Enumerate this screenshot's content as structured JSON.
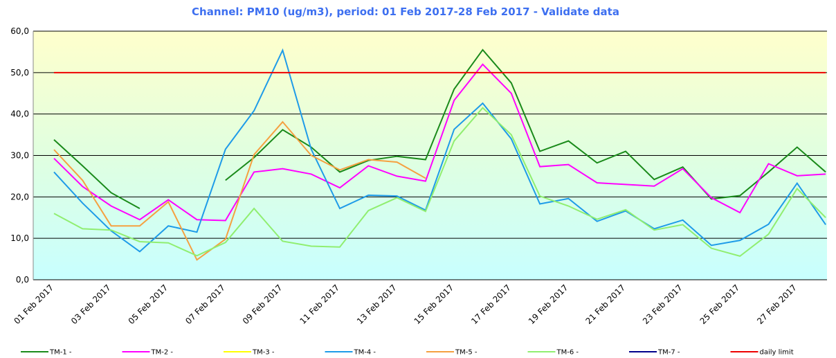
{
  "chart_data": {
    "type": "line",
    "title": "Channel: PM10 (ug/m3), period: 01 Feb 2017-28 Feb 2017 - Validate data",
    "categories": [
      "01 Feb 2017",
      null,
      "03 Feb 2017",
      null,
      "05 Feb 2017",
      null,
      "07 Feb 2017",
      null,
      "09 Feb 2017",
      null,
      "11 Feb 2017",
      null,
      "13 Feb 2017",
      null,
      "15 Feb 2017",
      null,
      "17 Feb 2017",
      null,
      "19 Feb 2017",
      null,
      "21 Feb 2017",
      null,
      "23 Feb 2017",
      null,
      "25 Feb 2017",
      null,
      "27 Feb 2017",
      null
    ],
    "ylim": [
      0,
      60
    ],
    "yticks": [
      {
        "value": 0,
        "label": "0,0"
      },
      {
        "value": 10,
        "label": "10,0"
      },
      {
        "value": 20,
        "label": "20,0"
      },
      {
        "value": 30,
        "label": "30,0"
      },
      {
        "value": 40,
        "label": "40,0"
      },
      {
        "value": 50,
        "label": "50,0"
      },
      {
        "value": 60,
        "label": "60,0"
      }
    ],
    "grid": true,
    "legend": "bottom",
    "series": [
      {
        "name": "TM-1 -",
        "color": "#1a8a1a",
        "values": [
          33.8,
          27.5,
          21,
          17.2,
          null,
          null,
          24,
          29.5,
          36.2,
          32,
          26,
          28.8,
          29.8,
          29,
          46,
          55.5,
          47.5,
          31,
          33.5,
          28.2,
          31,
          24.2,
          27.2,
          19.5,
          20.3,
          26,
          32,
          26
        ]
      },
      {
        "name": "TM-2 -",
        "color": "#ff00ff",
        "values": [
          29.3,
          22.5,
          17.8,
          14.5,
          19.3,
          14.5,
          14.3,
          26,
          26.8,
          25.5,
          22.2,
          27.5,
          25,
          23.8,
          43.3,
          52,
          45,
          27.3,
          27.8,
          23.4,
          23,
          22.6,
          26.8,
          19.8,
          16.2,
          28,
          25.1,
          25.5
        ]
      },
      {
        "name": "TM-3 -",
        "color": "#ffff00",
        "values": [
          null,
          null,
          null,
          null,
          null,
          null,
          null,
          null,
          null,
          null,
          null,
          null,
          null,
          null,
          null,
          null,
          null,
          null,
          null,
          null,
          null,
          null,
          null,
          null,
          null,
          null,
          null,
          null
        ]
      },
      {
        "name": "TM-4 -",
        "color": "#1e9be8",
        "values": [
          26,
          18.5,
          11.8,
          6.8,
          13,
          11.5,
          31.5,
          40.8,
          55.4,
          31.5,
          17.2,
          20.4,
          20.2,
          16.8,
          36.3,
          42.6,
          34,
          18.3,
          19.6,
          14.1,
          16.6,
          12.3,
          14.4,
          8.3,
          9.5,
          13.4,
          23.3,
          13.3
        ]
      },
      {
        "name": "TM-5 -",
        "color": "#f5a040",
        "values": [
          31.4,
          24,
          13,
          13,
          18.8,
          4.8,
          9.8,
          30.2,
          38.1,
          30,
          26.5,
          29,
          28.4,
          24.5,
          null,
          null,
          null,
          null,
          null,
          null,
          null,
          null,
          null,
          null,
          null,
          null,
          null,
          null
        ]
      },
      {
        "name": "TM-6 -",
        "color": "#90ee70",
        "values": [
          16,
          12.3,
          12,
          9.2,
          8.9,
          5.8,
          9,
          17.2,
          9.3,
          8.1,
          7.9,
          16.7,
          19.8,
          16.5,
          33.5,
          41.5,
          35,
          20.2,
          17.8,
          14.6,
          16.9,
          12,
          13.3,
          7.6,
          5.7,
          11,
          22,
          15
        ]
      },
      {
        "name": "TM-7 -",
        "color": "#00008b",
        "values": [
          null,
          null,
          null,
          null,
          null,
          null,
          null,
          null,
          null,
          null,
          null,
          null,
          null,
          null,
          null,
          null,
          null,
          null,
          null,
          null,
          null,
          null,
          null,
          null,
          null,
          null,
          null,
          null
        ]
      },
      {
        "name": "daily limit",
        "color": "#ee0000",
        "values": [
          50,
          50,
          50,
          50,
          50,
          50,
          50,
          50,
          50,
          50,
          50,
          50,
          50,
          50,
          50,
          50,
          50,
          50,
          50,
          50,
          50,
          50,
          50,
          50,
          50,
          50,
          50,
          50
        ]
      }
    ]
  }
}
